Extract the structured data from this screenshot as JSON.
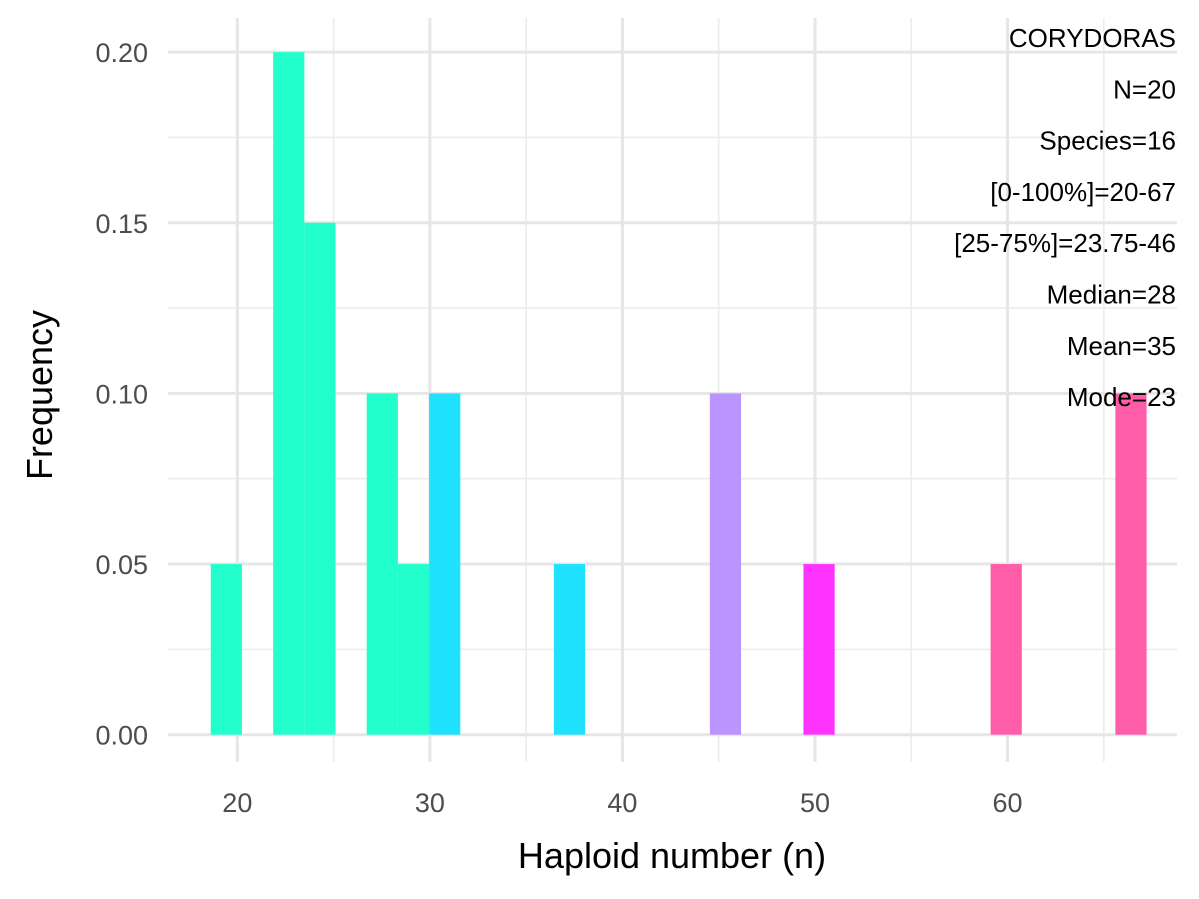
{
  "chart_data": {
    "type": "bar",
    "title": "",
    "xlabel": "Haploid number (n)",
    "ylabel": "Frequency",
    "xlim": [
      16.4,
      68.8
    ],
    "ylim": [
      -0.008,
      0.21
    ],
    "x_ticks": [
      20,
      30,
      40,
      50,
      60
    ],
    "y_ticks": [
      0.0,
      0.05,
      0.1,
      0.15,
      0.2
    ],
    "x_tick_labels": [
      "20",
      "30",
      "40",
      "50",
      "60"
    ],
    "y_tick_labels": [
      "0.00",
      "0.05",
      "0.10",
      "0.15",
      "0.20"
    ],
    "grid": true,
    "legend": "none",
    "bin_width": 1.62,
    "bars": [
      {
        "x": 19.43,
        "value": 0.05,
        "color": "#22FFCC"
      },
      {
        "x": 22.67,
        "value": 0.2,
        "color": "#22FFCC"
      },
      {
        "x": 24.29,
        "value": 0.15,
        "color": "#22FFCC"
      },
      {
        "x": 27.53,
        "value": 0.1,
        "color": "#22FFCC"
      },
      {
        "x": 29.15,
        "value": 0.05,
        "color": "#22FFCC"
      },
      {
        "x": 30.77,
        "value": 0.1,
        "color": "#1FE2FF"
      },
      {
        "x": 37.25,
        "value": 0.05,
        "color": "#1FE2FF"
      },
      {
        "x": 45.35,
        "value": 0.1,
        "color": "#BB94FF"
      },
      {
        "x": 50.21,
        "value": 0.05,
        "color": "#FF33FF"
      },
      {
        "x": 59.93,
        "value": 0.05,
        "color": "#FF5DA8"
      },
      {
        "x": 66.41,
        "value": 0.1,
        "color": "#FF5DA8"
      }
    ],
    "annotations": [
      "CORYDORAS",
      "N=20",
      "Species=16",
      "[0-100%]=20-67",
      "[25-75%]=23.75-46",
      "Median=28",
      "Mean=35",
      "Mode=23"
    ]
  }
}
